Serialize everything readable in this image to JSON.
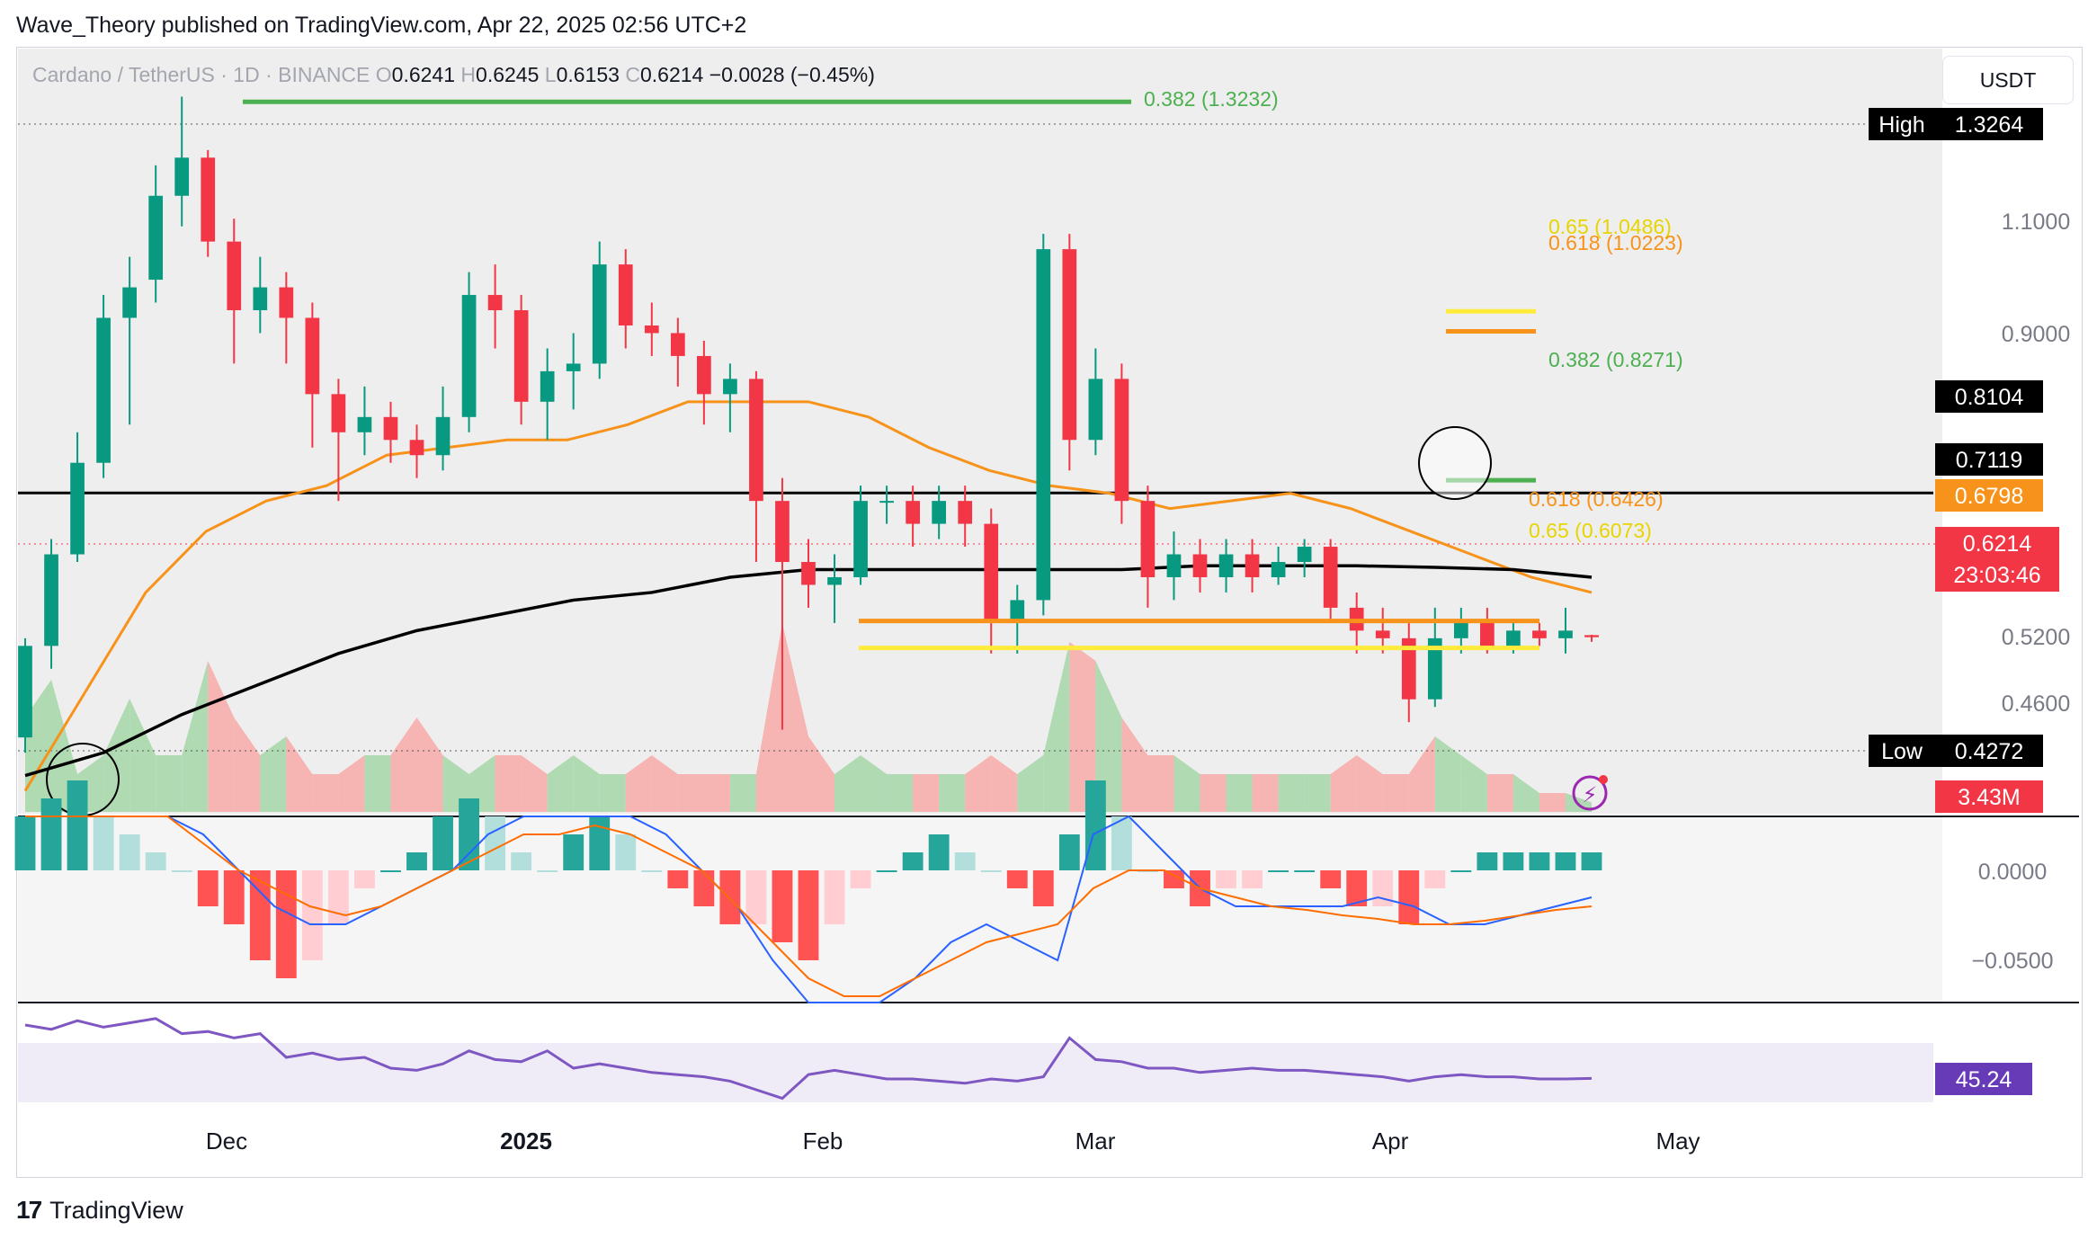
{
  "header": {
    "publisher": "Wave_Theory published on TradingView.com, Apr 22, 2025 02:56 UTC+2"
  },
  "legend": {
    "symbol": "Cardano / TetherUS · 1D · BINANCE",
    "o_label": "O",
    "o": "0.6241",
    "h_label": "H",
    "h": "0.6245",
    "l_label": "L",
    "l": "0.6153",
    "c_label": "C",
    "c": "0.6214",
    "change": "−0.0028 (−0.45%)"
  },
  "currency_button": "USDT",
  "footer": {
    "logo_mark": "17",
    "brand": "TradingView"
  },
  "colors": {
    "up": "#089981",
    "down": "#f23645",
    "ema50": "#f7931a",
    "ma200": "#000000",
    "fib_green": "#4caf50",
    "fib_orange": "#f7931a",
    "fib_yellow": "#ffeb3b",
    "rsi": "#7e57c2",
    "macd": "#2962ff",
    "signal": "#ff6d00"
  },
  "chart_data": [
    {
      "type": "candlestick",
      "title": "Cardano / TetherUS · 1D · BINANCE",
      "x_ticks": [
        "Dec",
        "2025",
        "Feb",
        "Mar",
        "Apr",
        "May"
      ],
      "price_axis": [
        "1.1000",
        "0.9000",
        "0.5200",
        "0.4600"
      ],
      "ylim": [
        0.39,
        1.36
      ],
      "high_label": {
        "label": "High",
        "value": "1.3264"
      },
      "low_label": {
        "label": "Low",
        "value": "0.4272"
      },
      "price_markers": [
        {
          "value": "0.8104",
          "style": "black"
        },
        {
          "value": "0.7119",
          "style": "black"
        },
        {
          "value": "0.6798",
          "style": "orange"
        },
        {
          "value": "0.6214",
          "style": "red",
          "countdown": "23:03:46"
        }
      ],
      "volume_marker": "3.43M",
      "horizontal_line": 0.8104,
      "fib_levels": [
        {
          "text": "0.382 (1.3232)",
          "value": 1.3232,
          "color": "green"
        },
        {
          "text": "0.65 (1.0486)",
          "value": 1.0486,
          "color": "yellow"
        },
        {
          "text": "0.618 (1.0223)",
          "value": 1.0223,
          "color": "orange"
        },
        {
          "text": "0.382 (0.8271)",
          "value": 0.8271,
          "color": "green"
        },
        {
          "text": "0.618 (0.6426)",
          "value": 0.6426,
          "color": "orange"
        },
        {
          "text": "0.65 (0.6073)",
          "value": 0.6073,
          "color": "yellow"
        }
      ],
      "ema50": [
        0.42,
        0.55,
        0.68,
        0.76,
        0.8,
        0.82,
        0.86,
        0.87,
        0.88,
        0.88,
        0.9,
        0.93,
        0.93,
        0.93,
        0.91,
        0.87,
        0.84,
        0.82,
        0.81,
        0.79,
        0.8,
        0.81,
        0.79,
        0.76,
        0.73,
        0.7,
        0.68
      ],
      "ma200": [
        0.44,
        0.47,
        0.52,
        0.56,
        0.6,
        0.63,
        0.65,
        0.67,
        0.68,
        0.7,
        0.71,
        0.71,
        0.71,
        0.71,
        0.71,
        0.715,
        0.715,
        0.715,
        0.713,
        0.71,
        0.7
      ],
      "candles": [
        [
          0.49,
          0.61,
          0.47,
          0.62
        ],
        [
          0.61,
          0.73,
          0.58,
          0.75
        ],
        [
          0.73,
          0.85,
          0.72,
          0.89
        ],
        [
          0.85,
          1.04,
          0.83,
          1.07
        ],
        [
          1.04,
          1.08,
          0.9,
          1.12
        ],
        [
          1.09,
          1.2,
          1.06,
          1.24
        ],
        [
          1.2,
          1.25,
          1.16,
          1.33
        ],
        [
          1.25,
          1.14,
          1.12,
          1.26
        ],
        [
          1.14,
          1.05,
          0.98,
          1.17
        ],
        [
          1.05,
          1.08,
          1.02,
          1.12
        ],
        [
          1.08,
          1.04,
          0.98,
          1.1
        ],
        [
          1.04,
          0.94,
          0.87,
          1.06
        ],
        [
          0.94,
          0.89,
          0.8,
          0.96
        ],
        [
          0.89,
          0.91,
          0.86,
          0.95
        ],
        [
          0.91,
          0.88,
          0.85,
          0.93
        ],
        [
          0.88,
          0.86,
          0.83,
          0.9
        ],
        [
          0.86,
          0.91,
          0.84,
          0.95
        ],
        [
          0.91,
          1.07,
          0.89,
          1.1
        ],
        [
          1.07,
          1.05,
          1.0,
          1.11
        ],
        [
          1.05,
          0.93,
          0.9,
          1.07
        ],
        [
          0.93,
          0.97,
          0.88,
          1.0
        ],
        [
          0.97,
          0.98,
          0.92,
          1.02
        ],
        [
          0.98,
          1.11,
          0.96,
          1.14
        ],
        [
          1.11,
          1.03,
          1.0,
          1.13
        ],
        [
          1.03,
          1.02,
          0.99,
          1.06
        ],
        [
          1.02,
          0.99,
          0.95,
          1.04
        ],
        [
          0.99,
          0.94,
          0.9,
          1.01
        ],
        [
          0.94,
          0.96,
          0.89,
          0.98
        ],
        [
          0.96,
          0.8,
          0.72,
          0.97
        ],
        [
          0.8,
          0.72,
          0.5,
          0.83
        ],
        [
          0.72,
          0.69,
          0.66,
          0.75
        ],
        [
          0.69,
          0.7,
          0.64,
          0.73
        ],
        [
          0.7,
          0.8,
          0.69,
          0.82
        ],
        [
          0.8,
          0.8,
          0.77,
          0.82
        ],
        [
          0.8,
          0.77,
          0.74,
          0.82
        ],
        [
          0.77,
          0.8,
          0.75,
          0.82
        ],
        [
          0.8,
          0.77,
          0.74,
          0.82
        ],
        [
          0.77,
          0.64,
          0.6,
          0.79
        ],
        [
          0.64,
          0.67,
          0.6,
          0.69
        ],
        [
          0.67,
          1.13,
          0.65,
          1.15
        ],
        [
          1.13,
          0.88,
          0.84,
          1.15
        ],
        [
          0.88,
          0.96,
          0.86,
          1.0
        ],
        [
          0.96,
          0.8,
          0.77,
          0.98
        ],
        [
          0.8,
          0.7,
          0.66,
          0.82
        ],
        [
          0.7,
          0.73,
          0.67,
          0.76
        ],
        [
          0.73,
          0.7,
          0.68,
          0.75
        ],
        [
          0.7,
          0.73,
          0.68,
          0.75
        ],
        [
          0.73,
          0.7,
          0.68,
          0.75
        ],
        [
          0.7,
          0.72,
          0.69,
          0.74
        ],
        [
          0.72,
          0.74,
          0.7,
          0.75
        ],
        [
          0.74,
          0.66,
          0.64,
          0.75
        ],
        [
          0.66,
          0.63,
          0.6,
          0.68
        ],
        [
          0.63,
          0.62,
          0.6,
          0.66
        ],
        [
          0.62,
          0.54,
          0.51,
          0.64
        ],
        [
          0.54,
          0.62,
          0.53,
          0.66
        ],
        [
          0.62,
          0.64,
          0.6,
          0.66
        ],
        [
          0.64,
          0.61,
          0.6,
          0.66
        ],
        [
          0.61,
          0.63,
          0.6,
          0.64
        ],
        [
          0.63,
          0.62,
          0.61,
          0.64
        ],
        [
          0.62,
          0.63,
          0.6,
          0.66
        ],
        [
          0.6241,
          0.6214,
          0.6153,
          0.6245
        ]
      ]
    },
    {
      "type": "bar",
      "title": "Volume",
      "values": [
        0.5,
        0.7,
        0.2,
        0.3,
        0.6,
        0.3,
        0.3,
        0.8,
        0.5,
        0.3,
        0.4,
        0.2,
        0.2,
        0.3,
        0.3,
        0.5,
        0.3,
        0.2,
        0.3,
        0.3,
        0.2,
        0.3,
        0.2,
        0.2,
        0.3,
        0.2,
        0.2,
        0.2,
        0.2,
        1.0,
        0.4,
        0.2,
        0.3,
        0.2,
        0.2,
        0.2,
        0.2,
        0.3,
        0.2,
        0.3,
        0.9,
        0.8,
        0.5,
        0.3,
        0.3,
        0.2,
        0.2,
        0.2,
        0.2,
        0.2,
        0.2,
        0.3,
        0.2,
        0.2,
        0.4,
        0.3,
        0.2,
        0.2,
        0.1,
        0.1,
        0.05
      ]
    },
    {
      "type": "bar",
      "title": "MACD",
      "y_ticks": [
        "0.0000",
        "−0.0500"
      ],
      "histogram": [
        0.03,
        0.04,
        0.05,
        0.03,
        0.02,
        0.01,
        0.0,
        -0.02,
        -0.03,
        -0.05,
        -0.06,
        -0.05,
        -0.03,
        -0.01,
        0.0,
        0.01,
        0.03,
        0.04,
        0.03,
        0.01,
        0.0,
        0.02,
        0.03,
        0.02,
        0.0,
        -0.01,
        -0.02,
        -0.03,
        -0.03,
        -0.04,
        -0.05,
        -0.03,
        -0.01,
        0.0,
        0.01,
        0.02,
        0.01,
        0.0,
        -0.01,
        -0.02,
        0.02,
        0.05,
        0.03,
        0.0,
        -0.01,
        -0.02,
        -0.01,
        -0.01,
        0.0,
        0.0,
        -0.01,
        -0.02,
        -0.02,
        -0.03,
        -0.01,
        0.0,
        0.01,
        0.01,
        0.01,
        0.01,
        0.01
      ],
      "macd": [
        0.04,
        0.05,
        0.06,
        0.05,
        0.04,
        0.02,
        0.0,
        -0.02,
        -0.03,
        -0.03,
        -0.02,
        -0.01,
        0.0,
        0.02,
        0.03,
        0.03,
        0.04,
        0.03,
        0.02,
        0.0,
        -0.02,
        -0.05,
        -0.08,
        -0.09,
        -0.08,
        -0.06,
        -0.04,
        -0.03,
        -0.04,
        -0.05,
        0.02,
        0.03,
        0.01,
        -0.01,
        -0.02,
        -0.02,
        -0.02,
        -0.02,
        -0.015,
        -0.02,
        -0.03,
        -0.03,
        -0.025,
        -0.02,
        -0.015
      ],
      "signal": [
        0.03,
        0.035,
        0.04,
        0.04,
        0.03,
        0.015,
        0.0,
        -0.01,
        -0.02,
        -0.025,
        -0.02,
        -0.01,
        0.0,
        0.01,
        0.02,
        0.02,
        0.025,
        0.02,
        0.01,
        0.0,
        -0.02,
        -0.04,
        -0.06,
        -0.07,
        -0.07,
        -0.06,
        -0.05,
        -0.04,
        -0.035,
        -0.03,
        -0.01,
        0.0,
        0.0,
        -0.01,
        -0.015,
        -0.02,
        -0.022,
        -0.025,
        -0.027,
        -0.03,
        -0.03,
        -0.028,
        -0.025,
        -0.022,
        -0.02
      ]
    },
    {
      "type": "line",
      "title": "RSI",
      "last_value": "45.24",
      "values": [
        70,
        68,
        72,
        69,
        71,
        73,
        66,
        67,
        64,
        66,
        55,
        57,
        54,
        55,
        50,
        49,
        52,
        58,
        54,
        53,
        58,
        50,
        52,
        50,
        48,
        47,
        46,
        44,
        40,
        36,
        47,
        49,
        47,
        45,
        45,
        44,
        43,
        45,
        44,
        46,
        64,
        54,
        53,
        50,
        50,
        48,
        49,
        50,
        49,
        49,
        48,
        47,
        46,
        44,
        46,
        47,
        46,
        46,
        45,
        45,
        45.24
      ]
    }
  ]
}
